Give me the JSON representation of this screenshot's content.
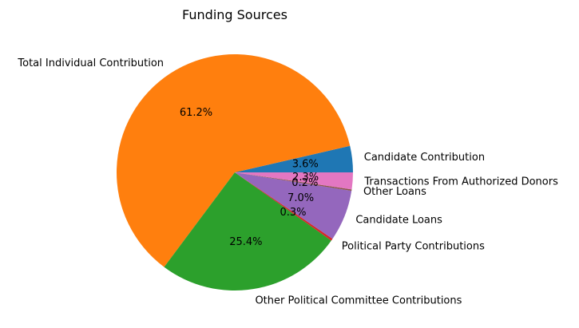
{
  "chart_data": {
    "type": "pie",
    "title": "Funding Sources",
    "start_angle_deg": 0,
    "direction": "counterclockwise",
    "slices": [
      {
        "label": "Candidate Contribution",
        "value": 3.6,
        "pct_label": "3.6%",
        "color": "#1f77b4"
      },
      {
        "label": "Total Individual Contribution",
        "value": 61.2,
        "pct_label": "61.2%",
        "color": "#ff7f0e"
      },
      {
        "label": "Other Political Committee Contributions",
        "value": 25.4,
        "pct_label": "25.4%",
        "color": "#2ca02c"
      },
      {
        "label": "Political Party Contributions",
        "value": 0.3,
        "pct_label": "0.3%",
        "color": "#d62728"
      },
      {
        "label": "Candidate Loans",
        "value": 7.0,
        "pct_label": "7.0%",
        "color": "#9467bd"
      },
      {
        "label": "Other Loans",
        "value": 0.2,
        "pct_label": "0.2%",
        "color": "#8c564b"
      },
      {
        "label": "Transactions From Authorized Donors",
        "value": 2.3,
        "pct_label": "2.3%",
        "color": "#e377c2"
      }
    ]
  }
}
